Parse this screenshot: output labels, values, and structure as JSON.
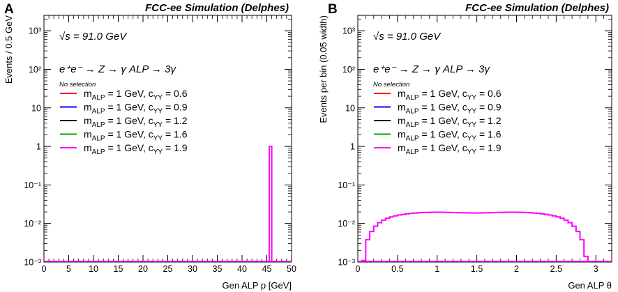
{
  "figure": {
    "panel_labels": [
      "A",
      "B"
    ]
  },
  "chart_data": [
    {
      "type": "histogram",
      "panel": "A",
      "header": "FCC-ee Simulation (Delphes)",
      "energy_label": "= 91.0 GeV",
      "energy_symbol": "√s",
      "process_label": "e⁺e⁻ → Z → γ ALP → 3γ",
      "selection_label": "No selection",
      "xlabel": "Gen ALP p [GeV]",
      "ylabel": "Events / 0.5 GeV",
      "xlim": [
        0,
        50
      ],
      "ylim_log10": [
        -3,
        3.4
      ],
      "xticks": [
        0,
        5,
        10,
        15,
        20,
        25,
        30,
        35,
        40,
        45,
        50
      ],
      "xtick_labels": [
        "0",
        "5",
        "10",
        "15",
        "20",
        "25",
        "30",
        "35",
        "40",
        "45",
        "50"
      ],
      "yticks_log10": [
        -3,
        -2,
        -1,
        0,
        1,
        2,
        3
      ],
      "ytick_labels": [
        "10⁻³",
        "10⁻²",
        "10⁻¹",
        "1",
        "10",
        "10²",
        "10³"
      ],
      "bin_width": 0.5,
      "legend": [
        {
          "name": "m_ALP = 1 GeV, c_YY = 0.6",
          "text": "= 1 GeV, c",
          "tail": "= 0.6",
          "color": "#ff0000"
        },
        {
          "name": "m_ALP = 1 GeV, c_YY = 0.9",
          "text": "= 1 GeV, c",
          "tail": "= 0.9",
          "color": "#0000ff"
        },
        {
          "name": "m_ALP = 1 GeV, c_YY = 1.2",
          "text": "= 1 GeV, c",
          "tail": "= 1.2",
          "color": "#000000"
        },
        {
          "name": "m_ALP = 1 GeV, c_YY = 1.6",
          "text": "= 1 GeV, c",
          "tail": "= 1.6",
          "color": "#00aa00"
        },
        {
          "name": "m_ALP = 1 GeV, c_YY = 1.9",
          "text": "= 1 GeV, c",
          "tail": "= 1.9",
          "color": "#ff00ff"
        }
      ],
      "series": [
        {
          "name": "m_ALP = 1 GeV, c_YY = 1.9",
          "color": "#ff00ff",
          "bins": [
            {
              "x": [
                45.5,
                46.0
              ],
              "y": 1.0
            }
          ]
        }
      ]
    },
    {
      "type": "histogram",
      "panel": "B",
      "header": "FCC-ee Simulation (Delphes)",
      "energy_label": "= 91.0 GeV",
      "energy_symbol": "√s",
      "process_label": "e⁺e⁻ → Z → γ ALP → 3γ",
      "selection_label": "No selection",
      "xlabel": "Gen ALP θ",
      "ylabel": "Events per bin (0.05 width)",
      "xlim": [
        0,
        3.2
      ],
      "ylim_log10": [
        -3,
        3.4
      ],
      "xticks": [
        0,
        0.5,
        1,
        1.5,
        2,
        2.5,
        3
      ],
      "xtick_labels": [
        "0",
        "0.5",
        "1",
        "1.5",
        "2",
        "2.5",
        "3"
      ],
      "yticks_log10": [
        -3,
        -2,
        -1,
        0,
        1,
        2,
        3
      ],
      "ytick_labels": [
        "10⁻³",
        "10⁻²",
        "10⁻¹",
        "1",
        "10",
        "10²",
        "10³"
      ],
      "bin_width": 0.05,
      "legend": [
        {
          "name": "m_ALP = 1 GeV, c_YY = 0.6",
          "text": "= 1 GeV, c",
          "tail": "= 0.6",
          "color": "#ff0000"
        },
        {
          "name": "m_ALP = 1 GeV, c_YY = 0.9",
          "text": "= 1 GeV, c",
          "tail": "= 0.9",
          "color": "#0000ff"
        },
        {
          "name": "m_ALP = 1 GeV, c_YY = 1.2",
          "text": "= 1 GeV, c",
          "tail": "= 1.2",
          "color": "#000000"
        },
        {
          "name": "m_ALP = 1 GeV, c_YY = 1.6",
          "text": "= 1 GeV, c",
          "tail": "= 1.6",
          "color": "#00aa00"
        },
        {
          "name": "m_ALP = 1 GeV, c_YY = 1.9",
          "text": "= 1 GeV, c",
          "tail": "= 1.9",
          "color": "#ff00ff"
        }
      ],
      "series": [
        {
          "name": "m_ALP = 1 GeV, c_YY = 1.9",
          "color": "#ff00ff",
          "x_start": 0.05,
          "values": [
            0.0011,
            0.0038,
            0.0062,
            0.0085,
            0.0105,
            0.0122,
            0.0136,
            0.0148,
            0.0158,
            0.0166,
            0.0172,
            0.0178,
            0.0183,
            0.0186,
            0.019,
            0.0192,
            0.0194,
            0.0195,
            0.0196,
            0.0196,
            0.0195,
            0.0194,
            0.0193,
            0.0192,
            0.019,
            0.0189,
            0.0188,
            0.0187,
            0.0187,
            0.0187,
            0.0188,
            0.0189,
            0.019,
            0.0192,
            0.0193,
            0.0194,
            0.0195,
            0.0196,
            0.0196,
            0.0195,
            0.0194,
            0.0192,
            0.019,
            0.0186,
            0.0183,
            0.0178,
            0.0172,
            0.0166,
            0.0158,
            0.0148,
            0.0136,
            0.0122,
            0.0105,
            0.0085,
            0.0062,
            0.0038,
            0.0014
          ]
        }
      ]
    }
  ]
}
